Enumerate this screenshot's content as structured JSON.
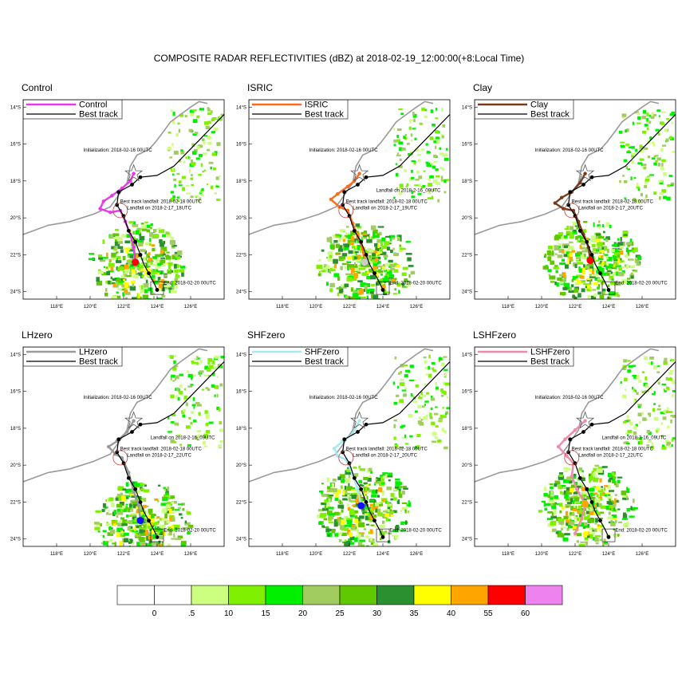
{
  "title": "COMPOSITE RADAR REFLECTIVITIES (dBZ) at 2018-02-19_12:00:00(+8:Local Time)",
  "chart_data": {
    "type": "map",
    "lon_range": [
      116,
      128
    ],
    "lat_range": [
      -24.4,
      -13.6
    ],
    "lon_ticks": [
      "118°E",
      "120°E",
      "122°E",
      "124°E",
      "126°E"
    ],
    "lat_ticks": [
      "14°S",
      "16°S",
      "18°S",
      "20°S",
      "22°S",
      "24°S"
    ],
    "best_track_label": "Best track",
    "initialization_text": "Initialization: 2018-02-16 00UTC",
    "best_track_landfall_text": "Best track landfall: 2018-02-18 00UTC",
    "end_text": "End: 2018-02-20 00UTC",
    "best_track": [
      [
        128,
        -14.4
      ],
      [
        126.5,
        -15.8
      ],
      [
        125,
        -17.2
      ],
      [
        124,
        -17.7
      ],
      [
        123,
        -17.8
      ],
      [
        122.5,
        -18.2
      ],
      [
        121.7,
        -18.6
      ],
      [
        121.6,
        -19.3
      ],
      [
        122,
        -19.9
      ],
      [
        122.3,
        -20.7
      ],
      [
        122.7,
        -21.3
      ],
      [
        123,
        -22
      ],
      [
        123.2,
        -22.5
      ],
      [
        123.5,
        -23
      ],
      [
        123.8,
        -23.5
      ],
      [
        124,
        -23.9
      ]
    ],
    "best_track_dots": [
      [
        123,
        -17.8
      ],
      [
        122.5,
        -18.2
      ],
      [
        121.7,
        -18.6
      ],
      [
        121.6,
        -19.3
      ],
      [
        122,
        -19.9
      ],
      [
        122.3,
        -20.7
      ],
      [
        122.7,
        -21.3
      ],
      [
        123,
        -22
      ],
      [
        123.5,
        -23
      ],
      [
        124,
        -23.9
      ]
    ],
    "coastline": [
      [
        116,
        -20.9
      ],
      [
        117.5,
        -20.4
      ],
      [
        118.8,
        -20.2
      ],
      [
        120.2,
        -19.8
      ],
      [
        121.2,
        -19.4
      ],
      [
        121.6,
        -18.9
      ],
      [
        122.2,
        -18.1
      ],
      [
        122.4,
        -17.2
      ],
      [
        122.8,
        -16.6
      ],
      [
        123.5,
        -16.3
      ],
      [
        123.9,
        -15.9
      ],
      [
        124.4,
        -15.3
      ],
      [
        124.8,
        -14.8
      ],
      [
        125.4,
        -14.4
      ],
      [
        126,
        -14
      ],
      [
        126.5,
        -13.7
      ],
      [
        127,
        -13.8
      ]
    ],
    "init_star": [
      122.6,
      -17.6
    ],
    "landfall_circle": [
      121.8,
      -19.6
    ],
    "end_box": [
      124,
      -23.8
    ],
    "colorbar": {
      "tick_labels": [
        "0",
        ".5",
        "10",
        "15",
        "20",
        "25",
        "30",
        "35",
        "40",
        "55",
        "60"
      ],
      "colors": [
        "#ffffff",
        "#ffffff",
        "#ccff80",
        "#7ff000",
        "#00f000",
        "#a0cc60",
        "#60c800",
        "#2a9030",
        "#ffff00",
        "#ffa500",
        "#ff0000",
        "#ee82ee"
      ]
    },
    "panels": [
      {
        "name": "Control",
        "title": "Control",
        "legend": "Control",
        "color": "#e838e8",
        "landfall_text": "Landfall on 2018-2-17_18UTC",
        "extra_text": "",
        "storm_center": [
          122.7,
          -22.4
        ],
        "center_dot_color": "#ff0000",
        "track": [
          [
            122.6,
            -17.6
          ],
          [
            122.4,
            -18.0
          ],
          [
            121.9,
            -18.4
          ],
          [
            121.3,
            -18.8
          ],
          [
            120.8,
            -19.1
          ],
          [
            120.6,
            -19.5
          ],
          [
            121.2,
            -19.7
          ],
          [
            121.8,
            -19.6
          ],
          [
            122.1,
            -20.2
          ],
          [
            122.4,
            -20.9
          ],
          [
            122.6,
            -21.6
          ],
          [
            122.7,
            -22.4
          ]
        ]
      },
      {
        "name": "ISRIC",
        "title": "ISRIC",
        "legend": "ISRIC",
        "color": "#ff6a1a",
        "landfall_text": "Landfall on 2018-2-17_19UTC",
        "extra_text": "Landfall on 2018-2-16_09UTC",
        "storm_center": [
          122.9,
          -22.4
        ],
        "center_dot_color": "#cccccc",
        "track": [
          [
            122.6,
            -17.6
          ],
          [
            122.3,
            -18.0
          ],
          [
            121.9,
            -18.3
          ],
          [
            121.3,
            -18.7
          ],
          [
            120.9,
            -19.0
          ],
          [
            121.4,
            -19.4
          ],
          [
            121.9,
            -19.6
          ],
          [
            122.2,
            -20.3
          ],
          [
            122.5,
            -21.0
          ],
          [
            122.8,
            -21.7
          ],
          [
            122.9,
            -22.4
          ]
        ]
      },
      {
        "name": "Clay",
        "title": "Clay",
        "legend": "Clay",
        "color": "#7a3a1a",
        "landfall_text": "Landfall on 2018-2-17_20UTC",
        "extra_text": "",
        "storm_center": [
          122.9,
          -22.3
        ],
        "center_dot_color": "#ff0000",
        "track": [
          [
            122.6,
            -17.6
          ],
          [
            122.3,
            -18.1
          ],
          [
            121.8,
            -18.6
          ],
          [
            121.2,
            -18.9
          ],
          [
            120.8,
            -19.2
          ],
          [
            121.3,
            -19.5
          ],
          [
            121.9,
            -19.6
          ],
          [
            122.2,
            -20.2
          ],
          [
            122.5,
            -20.9
          ],
          [
            122.8,
            -21.6
          ],
          [
            122.9,
            -22.3
          ]
        ]
      },
      {
        "name": "LHzero",
        "title": "LHzero",
        "legend": "LHzero",
        "color": "#9a9a9a",
        "landfall_text": "Landfall on 2018-2-17_22UTC",
        "extra_text": "Landfall on 2018-2-16_09UTC",
        "storm_center": [
          123.0,
          -23.0
        ],
        "center_dot_color": "#1010ff",
        "track": [
          [
            122.6,
            -17.6
          ],
          [
            122.2,
            -18.2
          ],
          [
            121.6,
            -18.7
          ],
          [
            121.1,
            -19.0
          ],
          [
            121.5,
            -19.4
          ],
          [
            121.9,
            -19.6
          ],
          [
            122.3,
            -20.4
          ],
          [
            122.6,
            -21.4
          ],
          [
            122.9,
            -22.2
          ],
          [
            123.0,
            -23.0
          ]
        ]
      },
      {
        "name": "SHFzero",
        "title": "SHFzero",
        "legend": "SHFzero",
        "color": "#a8e8f0",
        "landfall_text": "Landfall on 2018-2-17_20UTC",
        "extra_text": "",
        "storm_center": [
          122.7,
          -22.2
        ],
        "center_dot_color": "#1010ff",
        "track": [
          [
            122.6,
            -17.6
          ],
          [
            122.2,
            -18.3
          ],
          [
            121.6,
            -18.7
          ],
          [
            121.1,
            -19.1
          ],
          [
            121.3,
            -19.5
          ],
          [
            121.8,
            -19.7
          ],
          [
            122.2,
            -20.5
          ],
          [
            122.5,
            -21.3
          ],
          [
            122.7,
            -22.2
          ]
        ]
      },
      {
        "name": "LSHFzero",
        "title": "LSHFzero",
        "legend": "LSHFzero",
        "color": "#f08aa8",
        "landfall_text": "Landfall on 2018-2-17_22UTC",
        "extra_text": "Landfall on 2018-2-16_09UTC",
        "storm_center": [
          122.6,
          -22.1
        ],
        "center_dot_color": "#ffa500",
        "track": [
          [
            122.6,
            -17.6
          ],
          [
            122.0,
            -18.1
          ],
          [
            121.4,
            -18.6
          ],
          [
            121.0,
            -19.0
          ],
          [
            121.5,
            -19.5
          ],
          [
            121.9,
            -19.9
          ],
          [
            121.8,
            -20.6
          ],
          [
            122.1,
            -21.3
          ],
          [
            122.6,
            -22.1
          ],
          [
            122.4,
            -22.9
          ],
          [
            122.0,
            -23.7
          ]
        ]
      }
    ]
  }
}
